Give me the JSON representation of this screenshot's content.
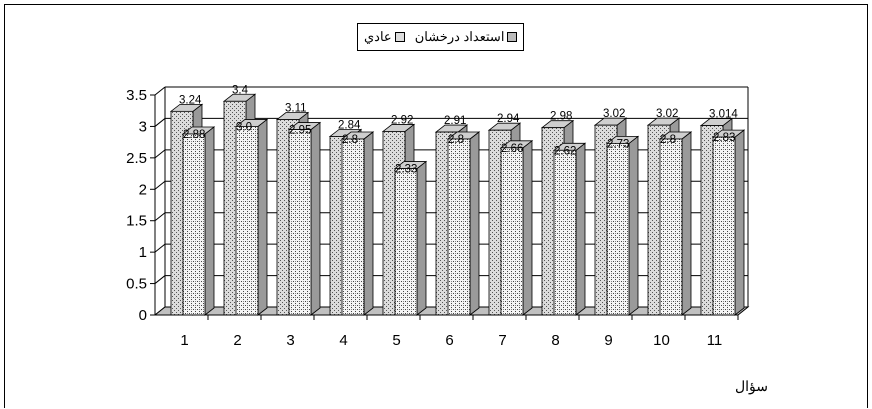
{
  "chart_data": {
    "type": "bar",
    "categories": [
      "1",
      "2",
      "3",
      "4",
      "5",
      "6",
      "7",
      "8",
      "9",
      "10",
      "11"
    ],
    "series": [
      {
        "name": "استعداد درخشان",
        "values": [
          3.24,
          3.4,
          3.11,
          2.84,
          2.92,
          2.91,
          2.94,
          2.98,
          3.02,
          3.02,
          3.014
        ]
      },
      {
        "name": "عادي",
        "values": [
          2.88,
          3.0,
          2.95,
          2.8,
          2.33,
          2.8,
          2.66,
          2.62,
          2.73,
          2.8,
          2.83
        ]
      }
    ],
    "data_labels": [
      [
        "3.24",
        "3.4",
        "3.11",
        "2.84",
        "2.92",
        "2.91",
        "2.94",
        "2.98",
        "3.02",
        "3.02",
        "3.014"
      ],
      [
        "2.88",
        "3.0",
        "2.95",
        "2.8",
        "2.33",
        "2.8",
        "2.66",
        "2.62",
        "2.73",
        "2.8",
        "2.83"
      ]
    ],
    "yticks": [
      "0",
      "0.5",
      "1",
      "1.5",
      "2",
      "2.5",
      "3",
      "3.5"
    ],
    "ylim": [
      0,
      3.5
    ],
    "xlabel": "سؤال",
    "ylabel": "",
    "legend_position": "top",
    "grid": true,
    "colors": {
      "series1": "#d9d9d9",
      "series2": "#f2f2f2",
      "grid": "#000000",
      "floor": "#c0c0c0"
    }
  }
}
